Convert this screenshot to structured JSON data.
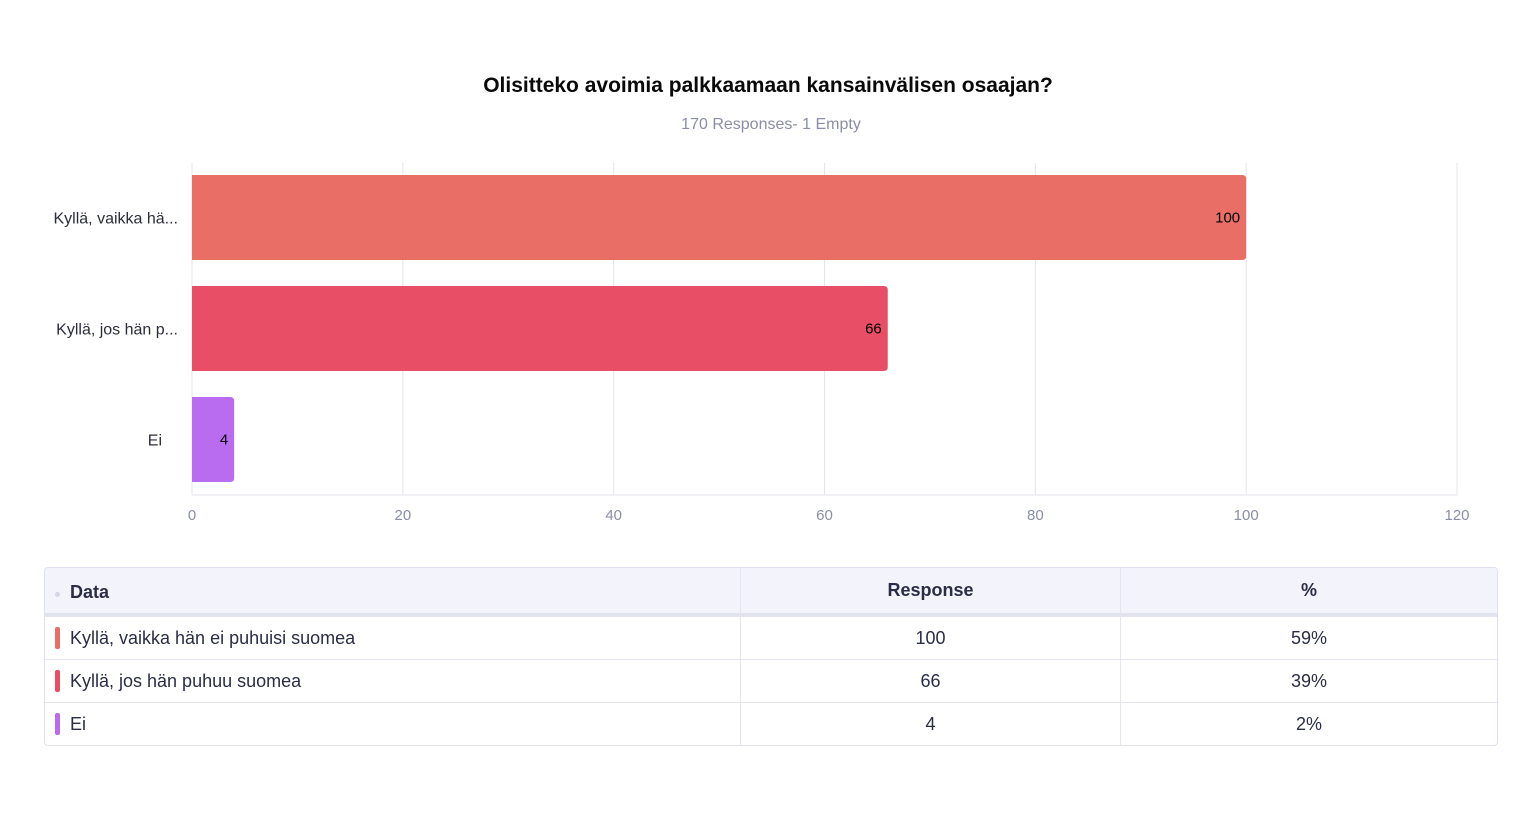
{
  "chart_data": {
    "type": "bar",
    "orientation": "horizontal",
    "title": "Olisitteko avoimia palkkaamaan kansainvälisen osaajan?",
    "subtitle": "170 Responses- 1 Empty",
    "categories": [
      "Kyllä, vaikka hä...",
      "Kyllä, jos hän p...",
      "Ei"
    ],
    "values": [
      100,
      66,
      4
    ],
    "colors": [
      "#e86e66",
      "#e84f66",
      "#b96cf0"
    ],
    "xlim": [
      0,
      120
    ],
    "xticks": [
      0,
      20,
      40,
      60,
      80,
      100,
      120
    ],
    "grid": true
  },
  "table": {
    "headers": [
      "Data",
      "Response",
      "%"
    ],
    "rows": [
      {
        "label": "Kyllä, vaikka hän ei puhuisi suomea",
        "response": "100",
        "percent": "59%",
        "color": "#e86e66"
      },
      {
        "label": "Kyllä, jos hän puhuu suomea",
        "response": "66",
        "percent": "39%",
        "color": "#e84f66"
      },
      {
        "label": "Ei",
        "response": "4",
        "percent": "2%",
        "color": "#b96cf0"
      }
    ]
  }
}
